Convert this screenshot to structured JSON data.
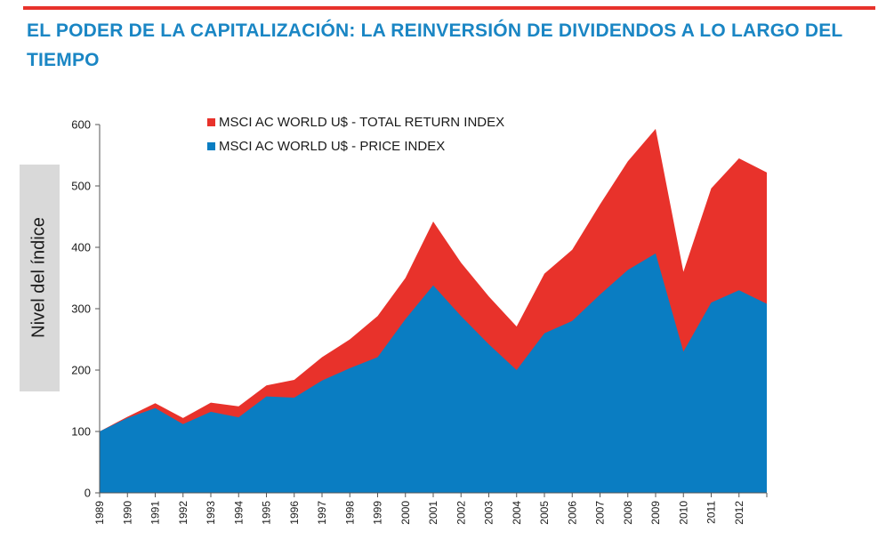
{
  "page": {
    "title": "EL PODER DE LA CAPITALIZACIÓN: LA REINVERSIÓN DE DIVIDENDOS A LO LARGO DEL TIEMPO",
    "accent_color": "#e8322b",
    "title_color": "#1a86c4"
  },
  "chart_data": {
    "type": "area",
    "title": "",
    "xlabel": "",
    "ylabel": "Nivel del índice",
    "ylim": [
      0,
      600
    ],
    "yticks": [
      0,
      100,
      200,
      300,
      400,
      500,
      600
    ],
    "x": [
      "1989",
      "1990",
      "1991",
      "1992",
      "1993",
      "1994",
      "1995",
      "1996",
      "1997",
      "1998",
      "1999",
      "2000",
      "2001",
      "2002",
      "2003",
      "2004",
      "2005",
      "2006",
      "2007",
      "2008",
      "2009",
      "2010",
      "2011",
      "2012",
      ""
    ],
    "legend_position": "top-left",
    "series": [
      {
        "name": "MSCI AC WORLD U$ - TOTAL RETURN INDEX",
        "color": "#e8322b",
        "values": [
          100,
          124,
          146,
          122,
          147,
          141,
          175,
          184,
          221,
          250,
          288,
          350,
          442,
          375,
          320,
          271,
          357,
          396,
          470,
          540,
          593,
          360,
          496,
          545,
          522
        ]
      },
      {
        "name": "MSCI AC WORLD U$ - PRICE INDEX",
        "color": "#0a7dc2",
        "values": [
          100,
          122,
          138,
          112,
          132,
          123,
          157,
          155,
          183,
          203,
          221,
          283,
          338,
          288,
          242,
          200,
          260,
          280,
          323,
          363,
          390,
          230,
          310,
          330,
          308
        ]
      }
    ]
  }
}
